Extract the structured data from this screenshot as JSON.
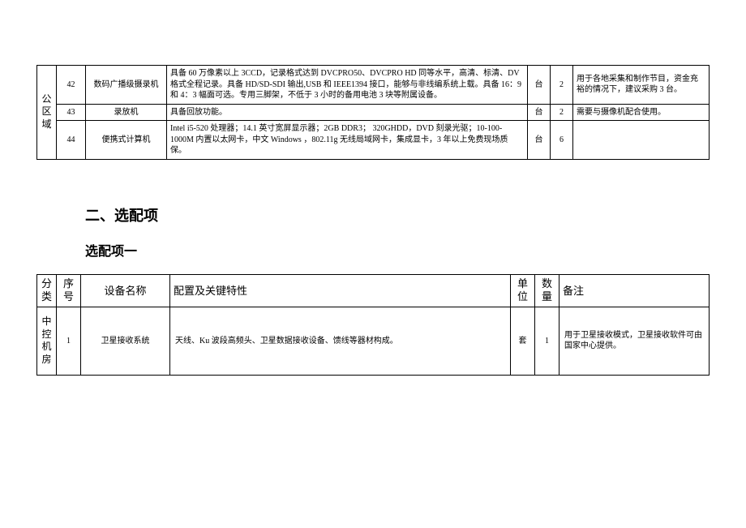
{
  "table1": {
    "category": "公区域",
    "rows": [
      {
        "num": "42",
        "name": "数码广播级摄录机",
        "spec": "具备 60 万像素以上 3CCD，记录格式达到 DVCPRO50、DVCPRO HD 同等水平，高清、标清、DV 格式全程记录。具备 HD/SD-SDI 输出,USB 和 IEEE1394 接口，能够与非线编系统上载。具备 16：9 和 4：3 幅面可选。专用三脚架，不低于 3 小时的备用电池 3 块等附属设备。",
        "unit": "台",
        "qty": "2",
        "note": "用于各地采集和制作节目，资金充裕的情况下，建议采购 3 台。"
      },
      {
        "num": "43",
        "name": "录放机",
        "spec": "具备回放功能。",
        "unit": "台",
        "qty": "2",
        "note": "需要与摄像机配合使用。"
      },
      {
        "num": "44",
        "name": "便携式计算机",
        "spec": "Intel i5-520 处理器；14.1 英寸宽屏显示器；2GB DDR3； 320GHDD，DVD 刻录光驱；10-100-1000M 内置以太网卡，中文 Windows ，802.11g 无线局域网卡，集成显卡，3 年以上免费现场质保。",
        "unit": "台",
        "qty": "6",
        "note": ""
      }
    ]
  },
  "headings": {
    "section": "二、选配项",
    "subsection": "选配项一"
  },
  "table2": {
    "header": {
      "cat": "分类",
      "num": "序号",
      "name": "设备名称",
      "spec": "配置及关键特性",
      "unit": "单位",
      "qty": "数量",
      "note": "备注"
    },
    "category": "中控机房",
    "rows": [
      {
        "num": "1",
        "name": "卫星接收系统",
        "spec": "天线、Ku 波段高频头、卫星数据接收设备、馈线等器材构成。",
        "unit": "套",
        "qty": "1",
        "note": "用于卫星接收模式，卫星接收软件可由国家中心提供。"
      }
    ]
  }
}
